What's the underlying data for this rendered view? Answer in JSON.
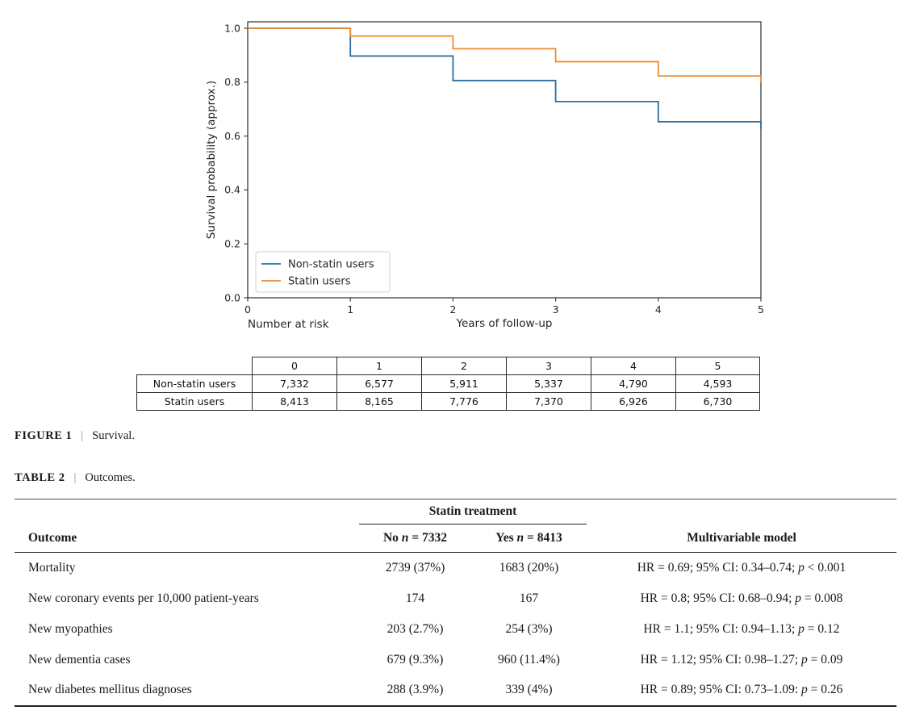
{
  "figure": {
    "caption": {
      "label": "FIGURE 1",
      "separator": "|",
      "text": "Survival."
    },
    "chart_data": {
      "type": "line",
      "subtype": "step-post",
      "title": "",
      "xlabel": "Years of follow-up",
      "ylabel": "Survival probability (approx.)",
      "number_at_risk_label": "Number at risk",
      "x": [
        0,
        1,
        2,
        3,
        4,
        5
      ],
      "xticks": [
        "0",
        "1",
        "2",
        "3",
        "4",
        "5"
      ],
      "yticks": [
        0.0,
        0.2,
        0.4,
        0.6,
        0.8,
        1.0
      ],
      "xlim": [
        0,
        5
      ],
      "ylim": [
        0,
        1.024
      ],
      "grid": false,
      "legend_position": "lower-left",
      "series": [
        {
          "name": "Non-statin users",
          "color": "#2c6e9f",
          "values": [
            1.0,
            0.897,
            0.806,
            0.728,
            0.653,
            0.626
          ]
        },
        {
          "name": "Statin users",
          "color": "#ec8b33",
          "values": [
            1.0,
            0.971,
            0.924,
            0.876,
            0.823,
            0.8
          ]
        }
      ]
    },
    "risk_table": {
      "col_headers": [
        "0",
        "1",
        "2",
        "3",
        "4",
        "5"
      ],
      "rows": [
        {
          "label": "Non-statin users",
          "values": [
            "7,332",
            "6,577",
            "5,911",
            "5,337",
            "4,790",
            "4,593"
          ]
        },
        {
          "label": "Statin users",
          "values": [
            "8,413",
            "8,165",
            "7,776",
            "7,370",
            "6,926",
            "6,730"
          ]
        }
      ]
    }
  },
  "table2": {
    "caption": {
      "label": "TABLE 2",
      "separator": "|",
      "text": "Outcomes."
    },
    "group_header": "Statin treatment",
    "columns": [
      "Outcome",
      "No n = 7332",
      "Yes n = 8413",
      "Multivariable model"
    ],
    "rows": [
      {
        "outcome": "Mortality",
        "no": "2739 (37%)",
        "yes": "1683 (20%)",
        "model": "HR = 0.69; 95% CI: 0.34–0.74; p < 0.001"
      },
      {
        "outcome": "New coronary events per 10,000 patient-years",
        "no": "174",
        "yes": "167",
        "model": "HR = 0.8; 95% CI: 0.68–0.94; p = 0.008"
      },
      {
        "outcome": "New myopathies",
        "no": "203 (2.7%)",
        "yes": "254 (3%)",
        "model": "HR = 1.1; 95% CI: 0.94–1.13; p = 0.12"
      },
      {
        "outcome": "New dementia cases",
        "no": "679 (9.3%)",
        "yes": "960 (11.4%)",
        "model": "HR = 1.12; 95% CI: 0.98–1.27; p = 0.09"
      },
      {
        "outcome": "New diabetes mellitus diagnoses",
        "no": "288 (3.9%)",
        "yes": "339 (4%)",
        "model": "HR = 0.89; 95% CI: 0.73–1.09: p = 0.26"
      }
    ]
  }
}
